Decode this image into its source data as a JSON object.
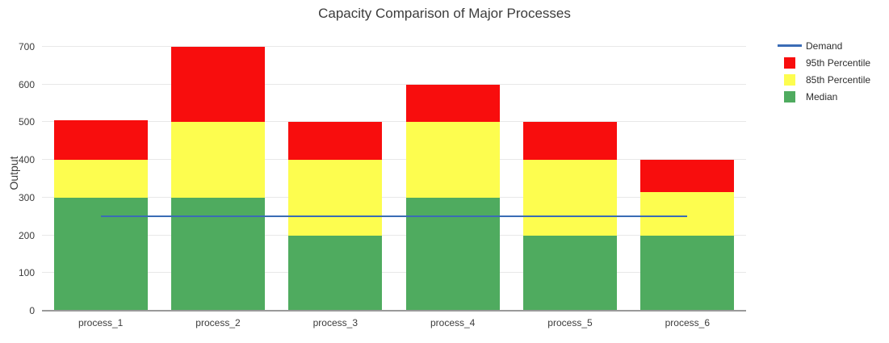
{
  "title": "Capacity Comparison of Major Processes",
  "legend": {
    "items": [
      {
        "label": "Demand",
        "swatch": "line",
        "color": "#3a6cb5"
      },
      {
        "label": "95th Percentile",
        "swatch": "square",
        "color": "#f80d0d"
      },
      {
        "label": "85th Percentile",
        "swatch": "square",
        "color": "#fdfd4f"
      },
      {
        "label": "Median",
        "swatch": "square",
        "color": "#4fab5f"
      }
    ]
  },
  "chart_data": {
    "type": "bar",
    "stacked": true,
    "title": "Capacity Comparison of Major Processes",
    "xlabel": "",
    "ylabel": "Output",
    "ylim": [
      0,
      730
    ],
    "yticks": [
      0,
      100,
      200,
      300,
      400,
      500,
      600,
      700
    ],
    "grid": true,
    "legend_position": "top-right-outside",
    "categories": [
      "process_1",
      "process_2",
      "process_3",
      "process_4",
      "process_5",
      "process_6"
    ],
    "series": [
      {
        "name": "Median",
        "type": "bar",
        "color": "#4fab5f",
        "segments": [
          300,
          300,
          200,
          300,
          200,
          200
        ],
        "cumulative_tops": [
          300,
          300,
          200,
          300,
          200,
          200
        ]
      },
      {
        "name": "85th Percentile",
        "type": "bar",
        "color": "#fdfd4f",
        "segments": [
          100,
          200,
          200,
          200,
          200,
          115
        ],
        "cumulative_tops": [
          400,
          500,
          400,
          500,
          400,
          315
        ]
      },
      {
        "name": "95th Percentile",
        "type": "bar",
        "color": "#f80d0d",
        "segments": [
          105,
          200,
          100,
          100,
          100,
          85
        ],
        "cumulative_tops": [
          505,
          700,
          500,
          600,
          500,
          400
        ]
      },
      {
        "name": "Demand",
        "type": "line",
        "color": "#3a6cb5",
        "value": 250,
        "start_category": "process_1",
        "end_category": "process_6"
      }
    ],
    "colors": {
      "gridline": "#e8e8e8",
      "axis_line": "#9a9a9a",
      "tick_text": "#3c3c3c",
      "title_text": "#3c3c3c"
    }
  }
}
